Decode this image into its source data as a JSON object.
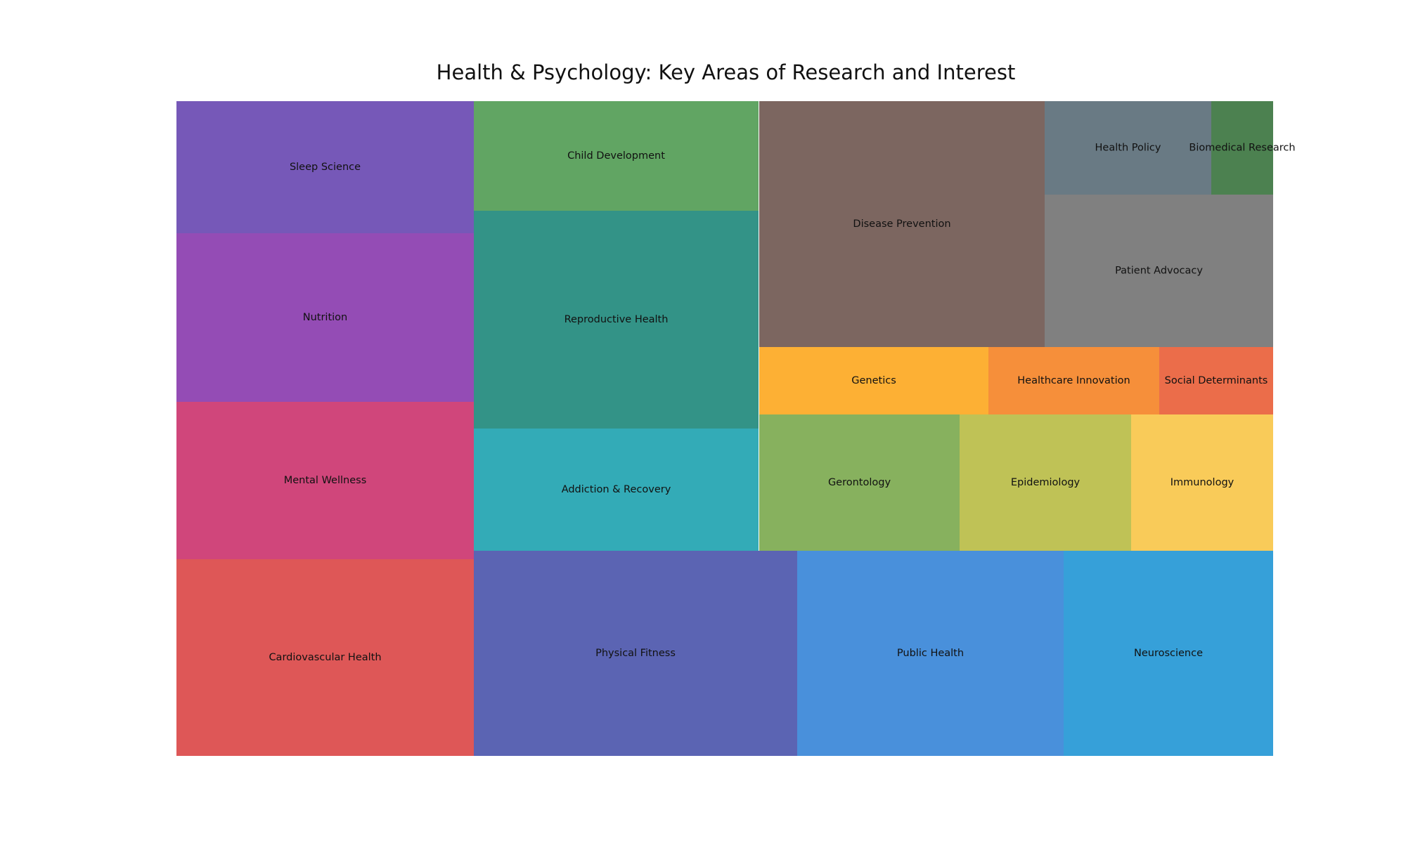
{
  "chart_data": {
    "type": "treemap",
    "title": "Health & Psychology: Key Areas of Research and Interest",
    "groups": [
      {
        "items": [
          {
            "label": "Sleep Science",
            "value": 20,
            "color": "#7658b8"
          },
          {
            "label": "Nutrition",
            "value": 26,
            "color": "#944cb5"
          },
          {
            "label": "Mental Wellness",
            "value": 24,
            "color": "#d0467b"
          },
          {
            "label": "Cardiovascular Health",
            "value": 30,
            "color": "#de5757"
          }
        ]
      },
      {
        "items": [
          {
            "label": "Child Development",
            "value": 16,
            "color": "#61a563"
          },
          {
            "label": "Reproductive Health",
            "value": 32,
            "color": "#339387"
          },
          {
            "label": "Addiction & Recovery",
            "value": 18,
            "color": "#33abb7"
          }
        ]
      },
      {
        "items": [
          {
            "label": "Physical Fitness",
            "value": 35,
            "color": "#5b64b3"
          },
          {
            "label": "Public Health",
            "value": 29,
            "color": "#4990db"
          },
          {
            "label": "Neuroscience",
            "value": 23,
            "color": "#36a0d9"
          }
        ]
      },
      {
        "items": [
          {
            "label": "Disease Prevention",
            "value": 35,
            "color": "#7c6660"
          },
          {
            "label": "Health Policy",
            "value": 8,
            "color": "#697a84"
          },
          {
            "label": "Biomedical Research",
            "value": 3,
            "color": "#4c8150"
          },
          {
            "label": "Patient Advocacy",
            "value": 18,
            "color": "#808080"
          },
          {
            "label": "Genetics",
            "value": 8,
            "color": "#fdb034"
          },
          {
            "label": "Healthcare Innovation",
            "value": 6,
            "color": "#f68f3a"
          },
          {
            "label": "Social Determinants",
            "value": 5,
            "color": "#eb6d4a"
          },
          {
            "label": "Gerontology",
            "value": 14,
            "color": "#87b15e"
          },
          {
            "label": "Epidemiology",
            "value": 12,
            "color": "#bfc256"
          },
          {
            "label": "Immunology",
            "value": 10,
            "color": "#f9cb59"
          }
        ]
      }
    ]
  }
}
